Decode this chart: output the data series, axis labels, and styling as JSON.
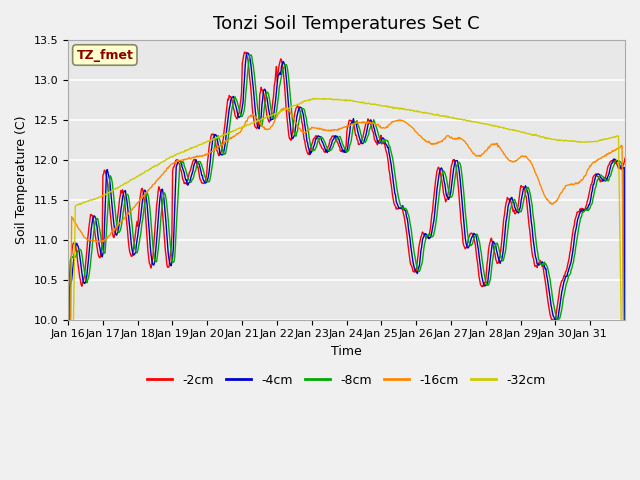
{
  "title": "Tonzi Soil Temperatures Set C",
  "xlabel": "Time",
  "ylabel": "Soil Temperature (C)",
  "ylim": [
    10.0,
    13.5
  ],
  "x_tick_labels": [
    "Jan 16",
    "Jan 17",
    "Jan 18",
    "Jan 19",
    "Jan 20",
    "Jan 21",
    "Jan 22",
    "Jan 23",
    "Jan 24",
    "Jan 25",
    "Jan 26",
    "Jan 27",
    "Jan 28",
    "Jan 29",
    "Jan 30",
    "Jan 31"
  ],
  "annotation_text": "TZ_fmet",
  "annotation_color": "#8B0000",
  "annotation_bg": "#FFFFCC",
  "line_colors": [
    "#FF0000",
    "#0000CC",
    "#00AA00",
    "#FF8800",
    "#CCCC00"
  ],
  "line_labels": [
    "-2cm",
    "-4cm",
    "-8cm",
    "-16cm",
    "-32cm"
  ],
  "bg_color": "#E8E8E8",
  "grid_color": "#FFFFFF",
  "title_fontsize": 13,
  "label_fontsize": 9,
  "tick_fontsize": 8
}
